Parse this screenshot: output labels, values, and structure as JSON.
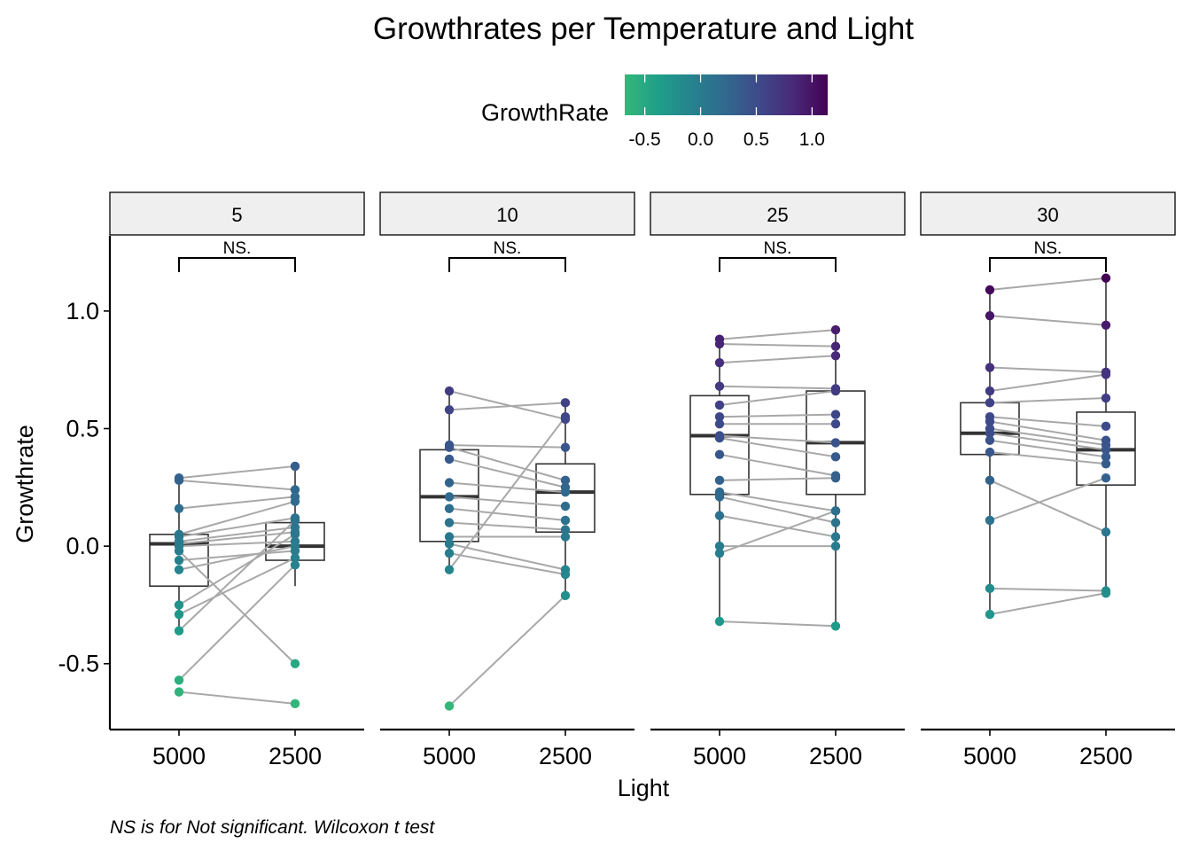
{
  "chart_data": {
    "type": "boxplot",
    "title": "Growthrates per Temperature and Light",
    "xlabel": "Light",
    "ylabel": "Growthrate",
    "caption": "NS is for Not significant. Wilcoxon t test",
    "legend": {
      "title": "GrowthRate",
      "position": "top",
      "ticks": [
        -0.5,
        0.0,
        0.5,
        1.0
      ],
      "tick_labels": [
        "-0.5",
        "0.0",
        "0.5",
        "1.0"
      ],
      "range": [
        -0.68,
        1.14
      ],
      "colors": [
        "#35b779",
        "#1f9e89",
        "#26828e",
        "#31688e",
        "#3e4989",
        "#482878",
        "#440154"
      ]
    },
    "categories": [
      "5000",
      "2500"
    ],
    "ylim": [
      -0.78,
      1.32
    ],
    "yticks": [
      -0.5,
      0.0,
      0.5,
      1.0
    ],
    "ytick_labels": [
      "-0.5",
      "0.0",
      "0.5",
      "1.0"
    ],
    "grid": false,
    "significance_label": "NS.",
    "facets": [
      {
        "label": "5",
        "box": [
          {
            "min": -0.36,
            "q1": -0.17,
            "median": 0.01,
            "q3": 0.05,
            "max": 0.29
          },
          {
            "min": -0.17,
            "q1": -0.06,
            "median": 0.0,
            "q3": 0.1,
            "max": 0.34
          }
        ],
        "pairs": [
          [
            0.29,
            0.34
          ],
          [
            0.28,
            0.24
          ],
          [
            0.16,
            0.21
          ],
          [
            0.05,
            0.19
          ],
          [
            0.04,
            0.12
          ],
          [
            0.02,
            0.08
          ],
          [
            0.01,
            0.06
          ],
          [
            0.0,
            0.02
          ],
          [
            -0.06,
            -0.02
          ],
          [
            -0.1,
            0.0
          ],
          [
            -0.25,
            0.05
          ],
          [
            -0.29,
            -0.05
          ],
          [
            -0.36,
            0.11
          ],
          [
            -0.02,
            -0.5
          ],
          [
            -0.57,
            -0.08
          ],
          [
            -0.62,
            -0.67
          ]
        ]
      },
      {
        "label": "10",
        "box": [
          {
            "min": -0.1,
            "q1": 0.02,
            "median": 0.21,
            "q3": 0.41,
            "max": 0.66
          },
          {
            "min": -0.21,
            "q1": 0.06,
            "median": 0.23,
            "q3": 0.35,
            "max": 0.61
          }
        ],
        "pairs": [
          [
            0.66,
            0.54
          ],
          [
            0.58,
            0.61
          ],
          [
            0.43,
            0.42
          ],
          [
            0.42,
            0.28
          ],
          [
            0.37,
            0.25
          ],
          [
            0.27,
            0.23
          ],
          [
            0.21,
            0.17
          ],
          [
            0.16,
            0.11
          ],
          [
            0.1,
            0.07
          ],
          [
            0.04,
            0.04
          ],
          [
            0.01,
            -0.1
          ],
          [
            -0.03,
            -0.12
          ],
          [
            -0.1,
            0.55
          ],
          [
            -0.68,
            -0.21
          ]
        ]
      },
      {
        "label": "25",
        "box": [
          {
            "min": -0.32,
            "q1": 0.22,
            "median": 0.47,
            "q3": 0.64,
            "max": 0.88
          },
          {
            "min": -0.34,
            "q1": 0.22,
            "median": 0.44,
            "q3": 0.66,
            "max": 0.92
          }
        ],
        "pairs": [
          [
            0.88,
            0.92
          ],
          [
            0.86,
            0.85
          ],
          [
            0.78,
            0.81
          ],
          [
            0.68,
            0.67
          ],
          [
            0.6,
            0.66
          ],
          [
            0.55,
            0.56
          ],
          [
            0.52,
            0.52
          ],
          [
            0.47,
            0.44
          ],
          [
            0.46,
            0.38
          ],
          [
            0.39,
            0.3
          ],
          [
            0.28,
            0.29
          ],
          [
            0.23,
            0.15
          ],
          [
            0.21,
            0.1
          ],
          [
            0.13,
            0.04
          ],
          [
            0.0,
            0.0
          ],
          [
            -0.03,
            0.15
          ],
          [
            -0.32,
            -0.34
          ]
        ]
      },
      {
        "label": "30",
        "box": [
          {
            "min": -0.29,
            "q1": 0.39,
            "median": 0.48,
            "q3": 0.61,
            "max": 1.09
          },
          {
            "min": -0.2,
            "q1": 0.26,
            "median": 0.41,
            "q3": 0.57,
            "max": 1.14
          }
        ],
        "pairs": [
          [
            1.09,
            1.14
          ],
          [
            0.98,
            0.94
          ],
          [
            0.76,
            0.74
          ],
          [
            0.66,
            0.73
          ],
          [
            0.61,
            0.63
          ],
          [
            0.55,
            0.51
          ],
          [
            0.53,
            0.45
          ],
          [
            0.5,
            0.43
          ],
          [
            0.48,
            0.41
          ],
          [
            0.45,
            0.38
          ],
          [
            0.4,
            0.35
          ],
          [
            0.28,
            0.06
          ],
          [
            0.11,
            0.29
          ],
          [
            -0.18,
            -0.19
          ],
          [
            -0.29,
            -0.2
          ]
        ]
      }
    ]
  }
}
